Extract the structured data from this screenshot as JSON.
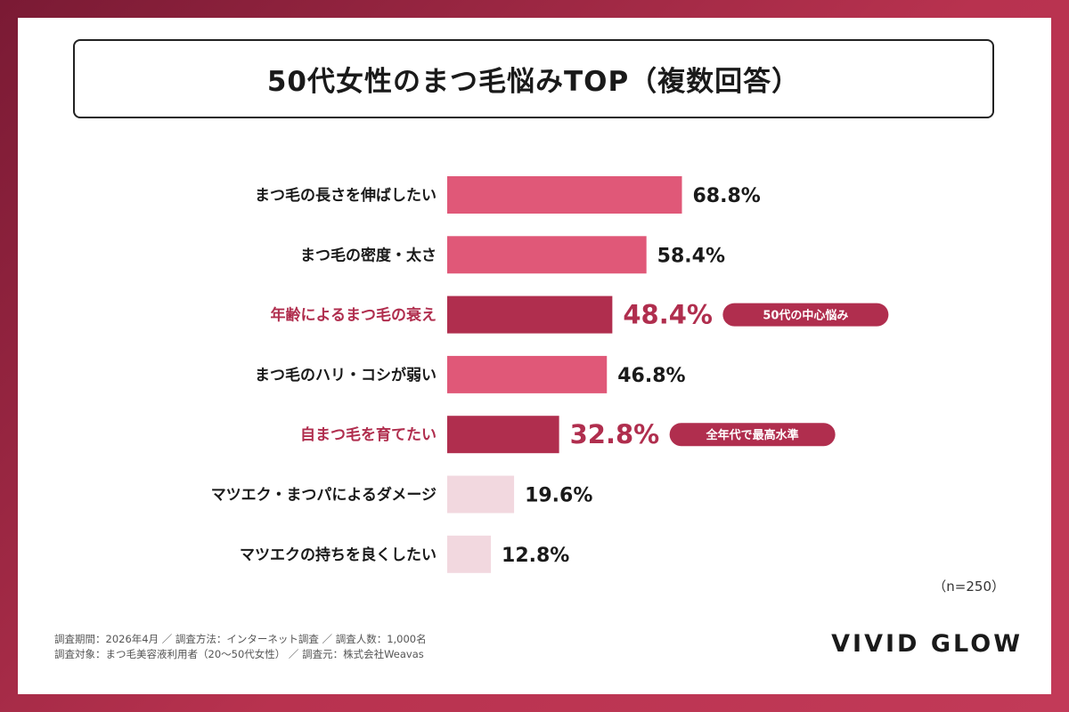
{
  "title": "50代女性のまつ毛悩みTOP（複数回答）",
  "n_label": "（n=250）",
  "footnote": {
    "line1": "調査期間：2026年4月 ／ 調査方法：インターネット調査 ／ 調査人数：1,000名",
    "line2": "調査対象：まつ毛美容液利用者（20〜50代女性） ／ 調査元：株式会社Weavas"
  },
  "brand": "VIVID GLOW",
  "colors": {
    "bar_normal": "#e05878",
    "bar_highlight": "#b02e4e",
    "bar_light": "#f2d8df",
    "label_highlight": "#b02e4e",
    "label_normal": "#1a1a1a",
    "badge": "#b02e4e"
  },
  "chart_data": {
    "type": "bar",
    "orientation": "horizontal",
    "unit": "%",
    "xlim": [
      0,
      100
    ],
    "categories": [
      "まつ毛の長さを伸ばしたい",
      "まつ毛の密度・太さ",
      "年齢によるまつ毛の衰え",
      "まつ毛のハリ・コシが弱い",
      "自まつ毛を育てたい",
      "マツエク・まつパによるダメージ",
      "マツエクの持ちを良くしたい"
    ],
    "values": [
      68.8,
      58.4,
      48.4,
      46.8,
      32.8,
      19.6,
      12.8
    ],
    "value_labels": [
      "68.8%",
      "58.4%",
      "48.4%",
      "46.8%",
      "32.8%",
      "19.6%",
      "12.8%"
    ],
    "styles": [
      "normal",
      "normal",
      "highlight",
      "normal",
      "highlight",
      "light",
      "light"
    ],
    "badges": [
      "",
      "",
      "50代の中心悩み",
      "",
      "全年代で最高水準",
      "",
      ""
    ]
  }
}
